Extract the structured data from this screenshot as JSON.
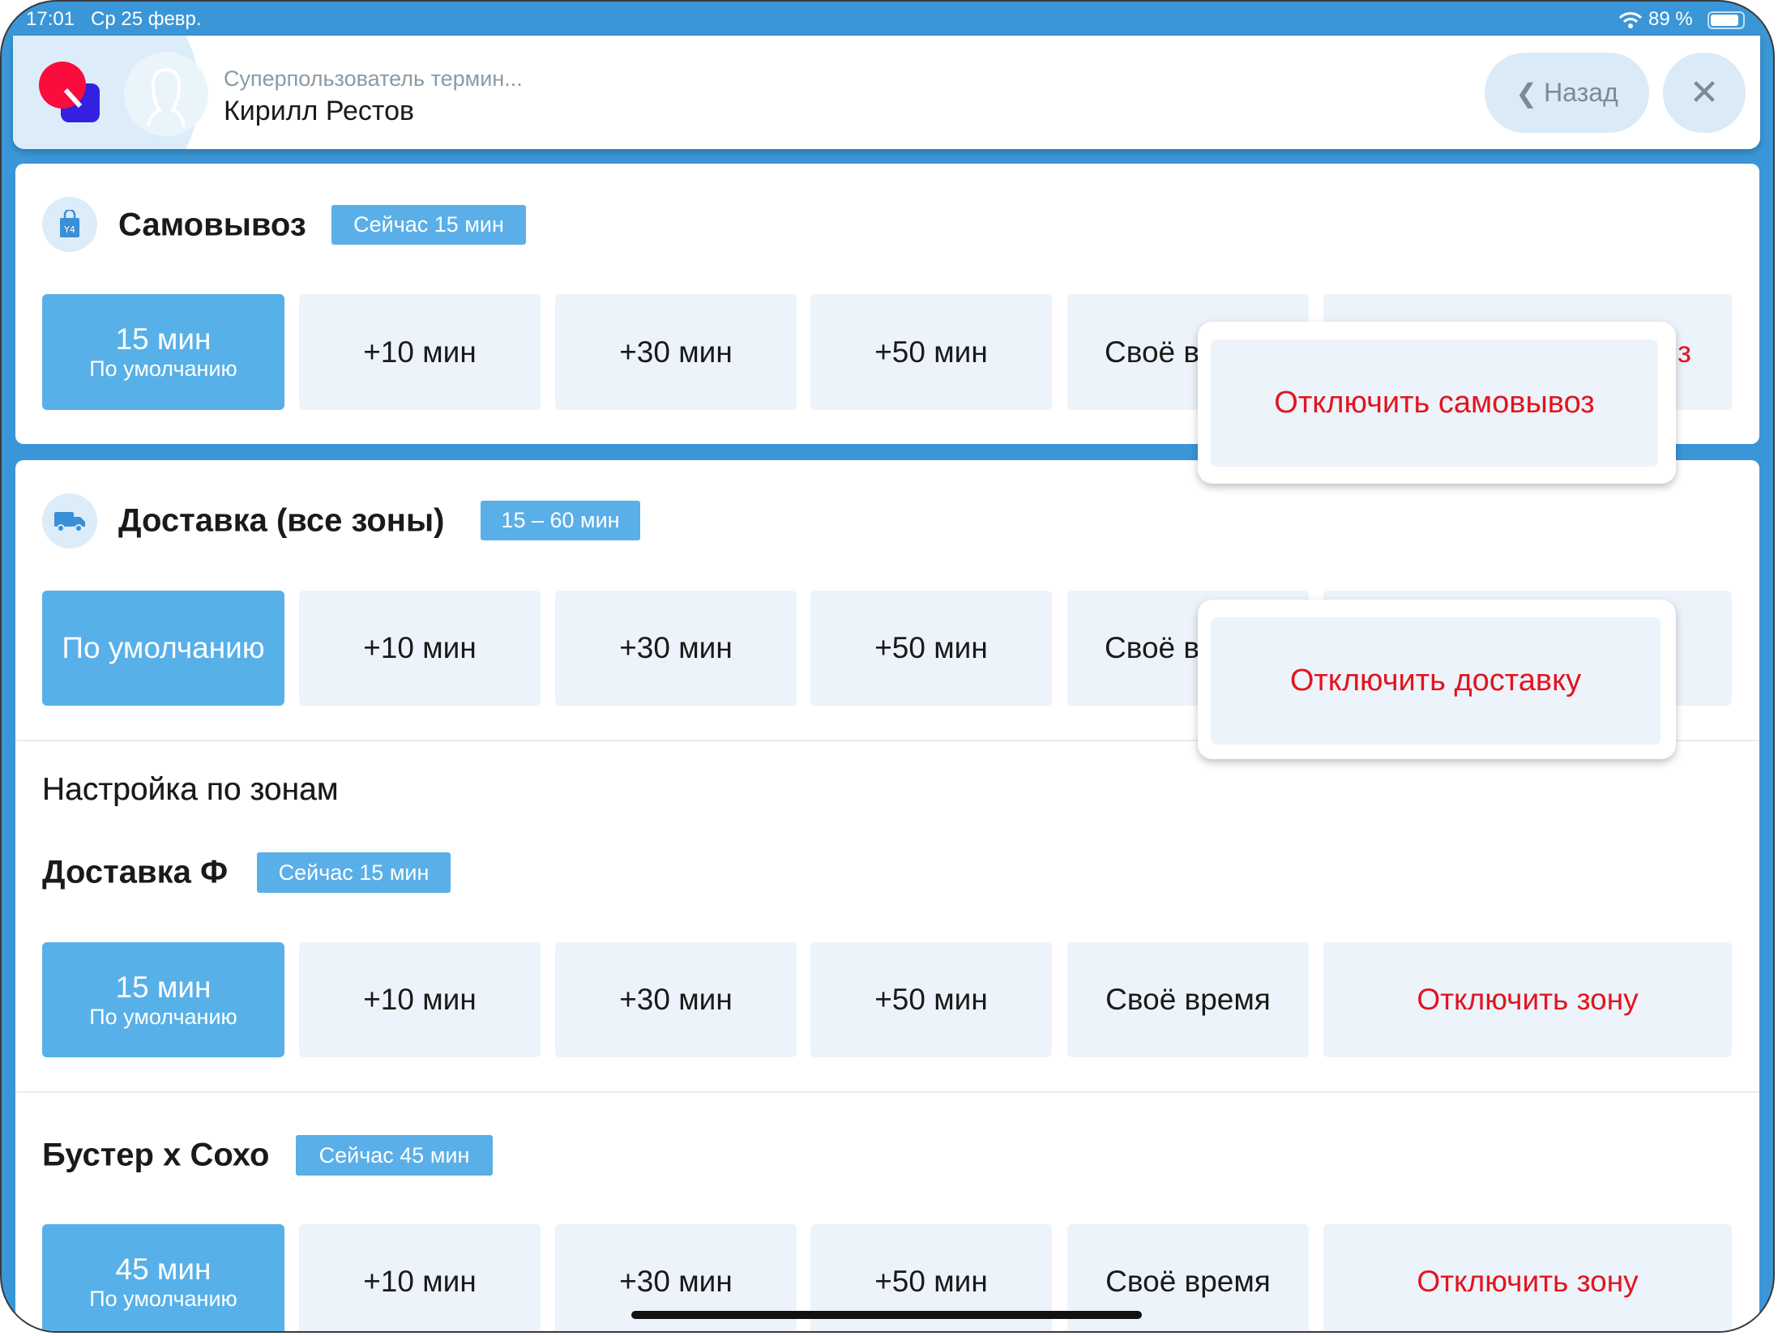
{
  "status_bar": {
    "time": "17:01",
    "date": "Ср 25 февр.",
    "battery": "89 %"
  },
  "header": {
    "role": "Суперпользователь термин...",
    "name": "Кирилл Рестов",
    "back_label": "Назад"
  },
  "pickup": {
    "title": "Самовывоз",
    "badge": "Сейчас 15 мин",
    "buttons": [
      {
        "main": "15 мин",
        "sub": "По умолчанию"
      },
      {
        "main": "+10 мин"
      },
      {
        "main": "+30 мин"
      },
      {
        "main": "+50 мин"
      },
      {
        "main": "Своё в"
      },
      {
        "main": "з"
      }
    ],
    "popover": "Отключить самовывоз"
  },
  "delivery": {
    "title": "Доставка (все зоны)",
    "badge": "15 – 60 мин",
    "buttons": [
      {
        "main": "По умолчанию"
      },
      {
        "main": "+10 мин"
      },
      {
        "main": "+30 мин"
      },
      {
        "main": "+50 мин"
      },
      {
        "main": "Своё в"
      }
    ],
    "popover": "Отключить доставку"
  },
  "zones": {
    "heading": "Настройка по зонам",
    "items": [
      {
        "title": "Доставка Ф",
        "badge": "Сейчас 15 мин",
        "buttons": [
          {
            "main": "15 мин",
            "sub": "По умолчанию"
          },
          {
            "main": "+10 мин"
          },
          {
            "main": "+30 мин"
          },
          {
            "main": "+50 мин"
          },
          {
            "main": "Своё время"
          },
          {
            "main": "Отключить зону"
          }
        ]
      },
      {
        "title": "Бустер х Сохо",
        "badge": "Сейчас 45 мин",
        "buttons": [
          {
            "main": "45 мин",
            "sub": "По умолчанию"
          },
          {
            "main": "+10 мин"
          },
          {
            "main": "+30 мин"
          },
          {
            "main": "+50 мин"
          },
          {
            "main": "Своё время"
          },
          {
            "main": "Отключить зону"
          }
        ]
      }
    ]
  },
  "colors": {
    "accent": "#3a96d6",
    "selected": "#58b0e8",
    "danger": "#e3141e"
  }
}
